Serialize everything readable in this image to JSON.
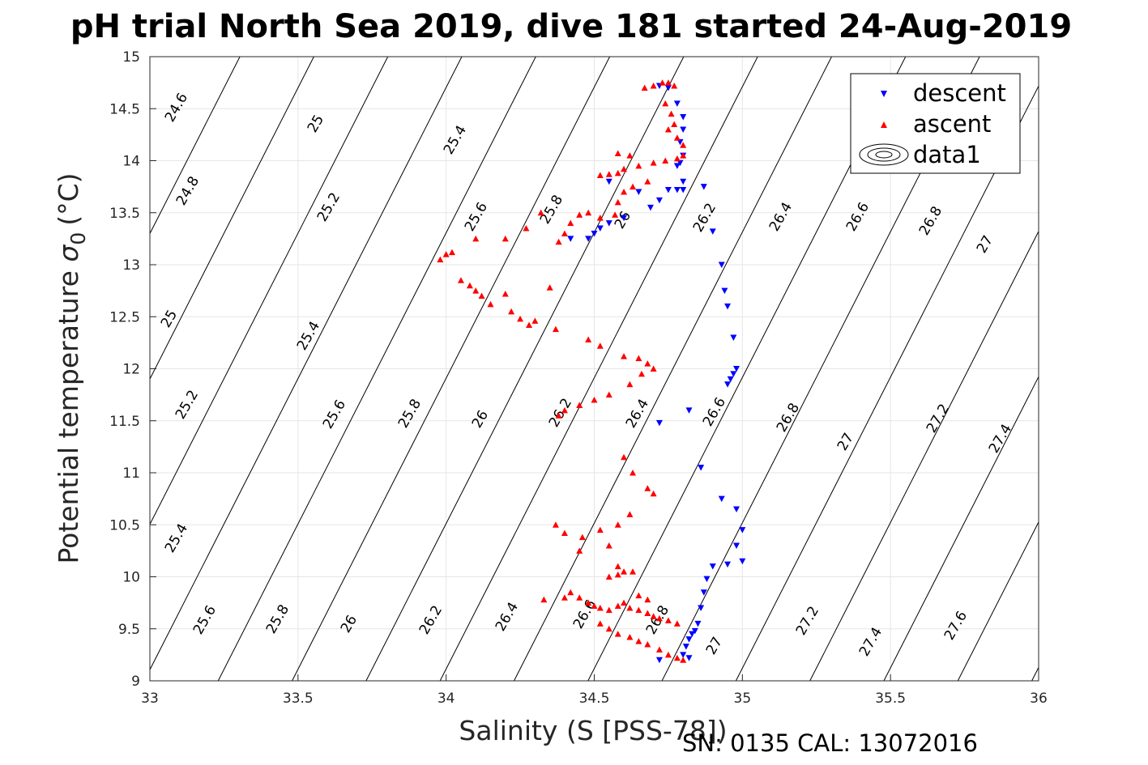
{
  "chart_data": {
    "type": "scatter",
    "title": "pH trial North Sea 2019, dive 181 started 24-Aug-2019",
    "xlabel": "Salinity (S [PSS-78])",
    "ylabel": "Potential temperature",
    "ylabel_symbol": "σ",
    "ylabel_sub": "0",
    "ylabel_unit": "(°C)",
    "xlim": [
      33,
      36
    ],
    "ylim": [
      9,
      15
    ],
    "xticks": [
      "33",
      "33.5",
      "34",
      "34.5",
      "35",
      "35.5",
      "36"
    ],
    "yticks": [
      "9",
      "9.5",
      "10",
      "10.5",
      "11",
      "11.5",
      "12",
      "12.5",
      "13",
      "13.5",
      "14",
      "14.5",
      "15"
    ],
    "grid": true,
    "legend_position": "top-right",
    "legend": [
      "descent",
      "ascent",
      "data1"
    ],
    "footer": "SN: 0135  CAL: 13072016",
    "contour_labels": [
      "24.6",
      "24.8",
      "25",
      "25.2",
      "25.4",
      "25.6",
      "25.8",
      "26",
      "26.2",
      "26.4",
      "26.6",
      "26.8",
      "27",
      "27.2",
      "27.4",
      "27.6"
    ],
    "series": [
      {
        "name": "descent",
        "marker": "triangle-down",
        "color": "#0000ff",
        "points": [
          [
            34.72,
            14.72
          ],
          [
            34.75,
            14.7
          ],
          [
            34.78,
            14.55
          ],
          [
            34.8,
            14.42
          ],
          [
            34.8,
            14.3
          ],
          [
            34.79,
            14.18
          ],
          [
            34.8,
            14.05
          ],
          [
            34.79,
            13.98
          ],
          [
            34.78,
            13.95
          ],
          [
            34.8,
            13.8
          ],
          [
            34.78,
            13.72
          ],
          [
            34.8,
            13.72
          ],
          [
            34.75,
            13.72
          ],
          [
            34.87,
            13.75
          ],
          [
            34.72,
            13.62
          ],
          [
            34.65,
            13.7
          ],
          [
            34.55,
            13.8
          ],
          [
            34.69,
            13.55
          ],
          [
            34.6,
            13.45
          ],
          [
            34.55,
            13.4
          ],
          [
            34.52,
            13.35
          ],
          [
            34.5,
            13.3
          ],
          [
            34.48,
            13.25
          ],
          [
            34.42,
            13.25
          ],
          [
            34.9,
            13.32
          ],
          [
            34.93,
            13.0
          ],
          [
            34.94,
            12.75
          ],
          [
            34.95,
            12.6
          ],
          [
            34.97,
            12.3
          ],
          [
            34.98,
            12.0
          ],
          [
            34.97,
            11.95
          ],
          [
            34.96,
            11.9
          ],
          [
            34.95,
            11.85
          ],
          [
            34.82,
            11.6
          ],
          [
            34.72,
            11.48
          ],
          [
            34.86,
            11.05
          ],
          [
            34.93,
            10.75
          ],
          [
            34.98,
            10.65
          ],
          [
            35.0,
            10.45
          ],
          [
            34.98,
            10.3
          ],
          [
            35.0,
            10.15
          ],
          [
            34.95,
            10.12
          ],
          [
            34.9,
            10.1
          ],
          [
            34.88,
            9.98
          ],
          [
            34.87,
            9.85
          ],
          [
            34.86,
            9.7
          ],
          [
            34.85,
            9.55
          ],
          [
            34.84,
            9.48
          ],
          [
            34.83,
            9.45
          ],
          [
            34.82,
            9.4
          ],
          [
            34.81,
            9.33
          ],
          [
            34.8,
            9.25
          ],
          [
            34.82,
            9.22
          ],
          [
            34.72,
            9.2
          ]
        ]
      },
      {
        "name": "ascent",
        "marker": "triangle-up",
        "color": "#ff0000",
        "points": [
          [
            34.67,
            14.7
          ],
          [
            34.7,
            14.72
          ],
          [
            34.73,
            14.75
          ],
          [
            34.75,
            14.75
          ],
          [
            34.77,
            14.72
          ],
          [
            34.74,
            14.55
          ],
          [
            34.76,
            14.45
          ],
          [
            34.77,
            14.35
          ],
          [
            34.75,
            14.3
          ],
          [
            34.78,
            14.22
          ],
          [
            34.8,
            14.15
          ],
          [
            34.8,
            14.05
          ],
          [
            34.78,
            14.02
          ],
          [
            34.74,
            14.0
          ],
          [
            34.7,
            13.98
          ],
          [
            34.65,
            13.95
          ],
          [
            34.6,
            13.92
          ],
          [
            34.58,
            13.88
          ],
          [
            34.55,
            13.87
          ],
          [
            34.52,
            13.86
          ],
          [
            34.62,
            14.05
          ],
          [
            34.58,
            14.07
          ],
          [
            34.68,
            13.8
          ],
          [
            34.63,
            13.75
          ],
          [
            34.6,
            13.7
          ],
          [
            34.58,
            13.6
          ],
          [
            34.57,
            13.48
          ],
          [
            34.52,
            13.45
          ],
          [
            34.48,
            13.5
          ],
          [
            34.45,
            13.48
          ],
          [
            34.42,
            13.4
          ],
          [
            34.4,
            13.3
          ],
          [
            34.38,
            13.22
          ],
          [
            34.32,
            13.5
          ],
          [
            34.27,
            13.35
          ],
          [
            34.2,
            13.25
          ],
          [
            34.1,
            13.25
          ],
          [
            34.0,
            13.1
          ],
          [
            33.98,
            13.05
          ],
          [
            34.02,
            13.12
          ],
          [
            34.05,
            12.85
          ],
          [
            34.08,
            12.8
          ],
          [
            34.1,
            12.75
          ],
          [
            34.12,
            12.7
          ],
          [
            34.15,
            12.62
          ],
          [
            34.2,
            12.72
          ],
          [
            34.22,
            12.55
          ],
          [
            34.25,
            12.48
          ],
          [
            34.28,
            12.42
          ],
          [
            34.3,
            12.46
          ],
          [
            34.35,
            12.78
          ],
          [
            34.37,
            12.38
          ],
          [
            34.48,
            12.28
          ],
          [
            34.52,
            12.22
          ],
          [
            34.6,
            12.12
          ],
          [
            34.65,
            12.1
          ],
          [
            34.68,
            12.05
          ],
          [
            34.7,
            12.0
          ],
          [
            34.66,
            11.95
          ],
          [
            34.62,
            11.85
          ],
          [
            34.55,
            11.75
          ],
          [
            34.5,
            11.7
          ],
          [
            34.45,
            11.65
          ],
          [
            34.4,
            11.6
          ],
          [
            34.38,
            11.55
          ],
          [
            34.6,
            11.15
          ],
          [
            34.63,
            11.0
          ],
          [
            34.68,
            10.85
          ],
          [
            34.7,
            10.8
          ],
          [
            34.62,
            10.6
          ],
          [
            34.58,
            10.5
          ],
          [
            34.52,
            10.45
          ],
          [
            34.46,
            10.38
          ],
          [
            34.4,
            10.42
          ],
          [
            34.37,
            10.5
          ],
          [
            34.45,
            10.25
          ],
          [
            34.55,
            10.3
          ],
          [
            34.58,
            10.1
          ],
          [
            34.6,
            10.05
          ],
          [
            34.63,
            10.05
          ],
          [
            34.58,
            10.02
          ],
          [
            34.55,
            10.0
          ],
          [
            34.33,
            9.78
          ],
          [
            34.4,
            9.8
          ],
          [
            34.42,
            9.85
          ],
          [
            34.45,
            9.8
          ],
          [
            34.48,
            9.75
          ],
          [
            34.5,
            9.72
          ],
          [
            34.52,
            9.7
          ],
          [
            34.55,
            9.68
          ],
          [
            34.58,
            9.72
          ],
          [
            34.6,
            9.75
          ],
          [
            34.62,
            9.7
          ],
          [
            34.65,
            9.68
          ],
          [
            34.68,
            9.65
          ],
          [
            34.7,
            9.62
          ],
          [
            34.72,
            9.6
          ],
          [
            34.75,
            9.58
          ],
          [
            34.78,
            9.55
          ],
          [
            34.65,
            9.82
          ],
          [
            34.68,
            9.78
          ],
          [
            34.52,
            9.55
          ],
          [
            34.55,
            9.5
          ],
          [
            34.58,
            9.45
          ],
          [
            34.62,
            9.42
          ],
          [
            34.65,
            9.38
          ],
          [
            34.68,
            9.35
          ],
          [
            34.72,
            9.3
          ],
          [
            34.75,
            9.25
          ],
          [
            34.78,
            9.22
          ],
          [
            34.8,
            9.2
          ]
        ]
      }
    ]
  }
}
